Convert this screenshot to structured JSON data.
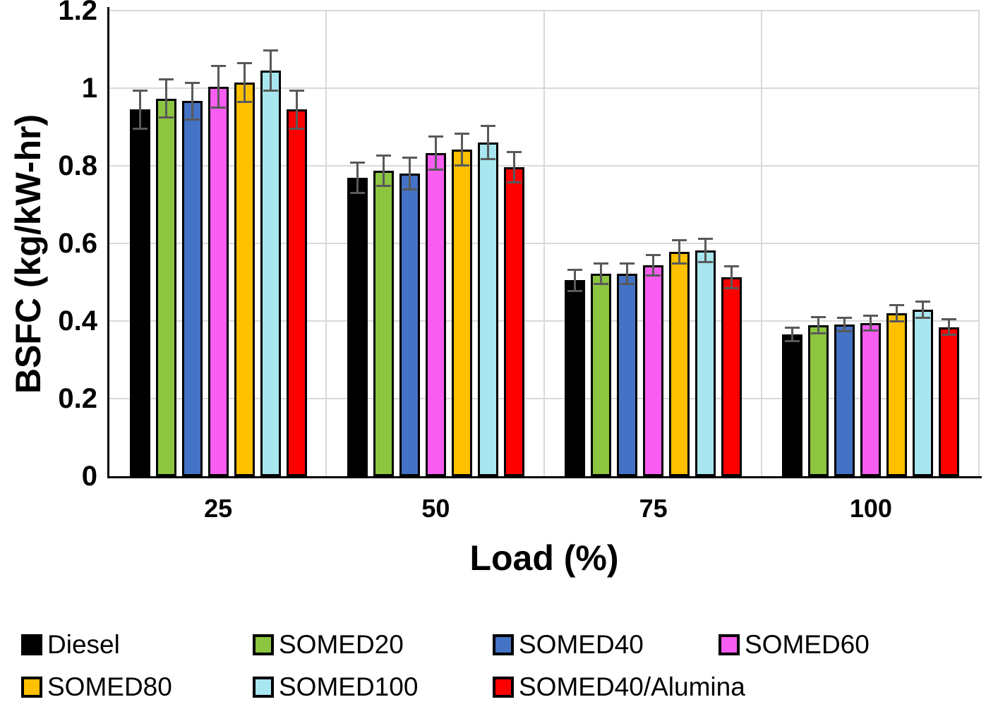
{
  "chart_data": {
    "type": "bar",
    "title": "",
    "xlabel": "Load (%)",
    "ylabel": "BSFC (kg/kW-hr)",
    "categories": [
      "25",
      "50",
      "75",
      "100"
    ],
    "y_ticks": [
      "0",
      "0.2",
      "0.4",
      "0.6",
      "0.8",
      "1",
      "1.2"
    ],
    "y_tick_values": [
      0,
      0.2,
      0.4,
      0.6,
      0.8,
      1.0,
      1.2
    ],
    "ylim": [
      0,
      1.2
    ],
    "grid": true,
    "legend_position": "bottom",
    "error_bar_color": "#595959",
    "gridline_color": "#D9D9D9",
    "series": [
      {
        "name": "Diesel",
        "color": "#000000",
        "values": [
          0.945,
          0.77,
          0.505,
          0.365
        ],
        "errors": [
          0.05,
          0.04,
          0.028,
          0.018
        ]
      },
      {
        "name": "SOMED20",
        "color": "#8CC540",
        "values": [
          0.973,
          0.787,
          0.522,
          0.389
        ],
        "errors": [
          0.05,
          0.04,
          0.027,
          0.022
        ]
      },
      {
        "name": "SOMED40",
        "color": "#4472C4",
        "values": [
          0.967,
          0.78,
          0.522,
          0.391
        ],
        "errors": [
          0.048,
          0.042,
          0.027,
          0.018
        ]
      },
      {
        "name": "SOMED60",
        "color": "#F75DF0",
        "values": [
          1.004,
          0.833,
          0.544,
          0.395
        ],
        "errors": [
          0.054,
          0.043,
          0.027,
          0.02
        ]
      },
      {
        "name": "SOMED80",
        "color": "#FFC000",
        "values": [
          1.015,
          0.842,
          0.578,
          0.42
        ],
        "errors": [
          0.051,
          0.042,
          0.031,
          0.022
        ]
      },
      {
        "name": "SOMED100",
        "color": "#A8E6F0",
        "values": [
          1.045,
          0.86,
          0.582,
          0.429
        ],
        "errors": [
          0.053,
          0.044,
          0.031,
          0.022
        ]
      },
      {
        "name": "SOMED40/Alumina",
        "color": "#FE0000",
        "values": [
          0.945,
          0.796,
          0.513,
          0.384
        ],
        "errors": [
          0.05,
          0.04,
          0.029,
          0.021
        ]
      }
    ]
  }
}
